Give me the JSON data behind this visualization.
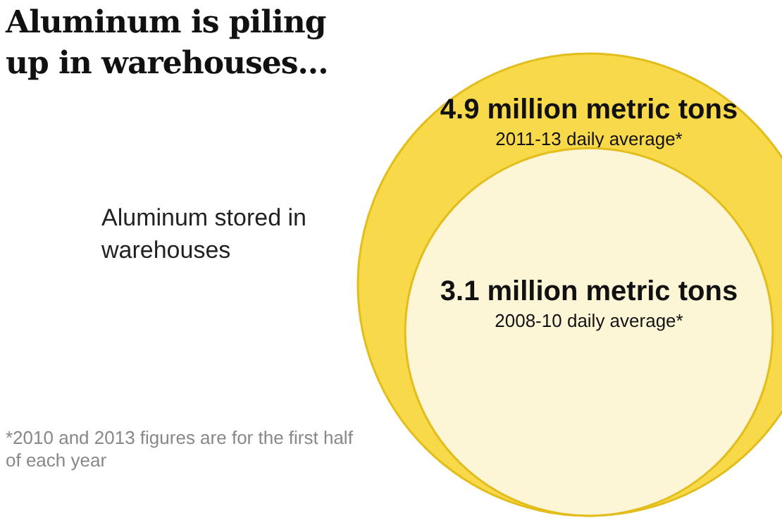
{
  "chart_data": {
    "type": "other",
    "title": "Aluminum is piling up in warehouses...",
    "subtitle": "Aluminum stored in warehouses",
    "categories": [
      "2011-13 daily average*",
      "2008-10 daily average*"
    ],
    "values": [
      4.9,
      3.1
    ],
    "value_labels": [
      "4.9 million metric tons",
      "3.1 million metric tons"
    ],
    "colors": [
      "#f8d94a",
      "#fdf6d6"
    ],
    "annotations": [
      "*2010 and 2013 figures are for the first half of each year"
    ]
  }
}
